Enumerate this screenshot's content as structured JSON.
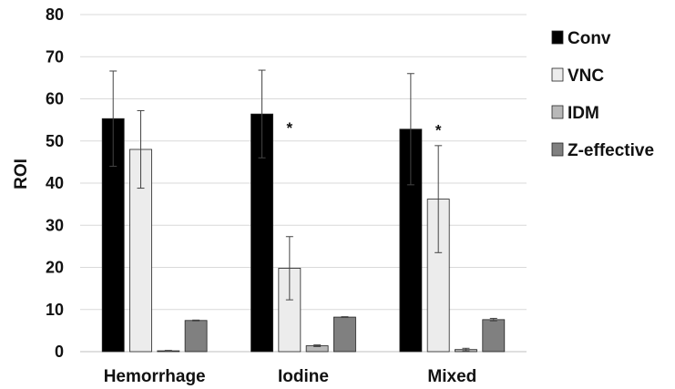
{
  "chart_data": {
    "type": "bar",
    "title": "",
    "xlabel": "",
    "ylabel": "ROI",
    "ylim": [
      0,
      80
    ],
    "yticks": [
      0,
      10,
      20,
      30,
      40,
      50,
      60,
      70,
      80
    ],
    "grid": true,
    "legend_position": "right",
    "categories": [
      "Hemorrhage",
      "Iodine",
      "Mixed"
    ],
    "series": [
      {
        "name": "Conv",
        "color": "#000000",
        "values": [
          55.3,
          56.4,
          52.8
        ],
        "errors": [
          11.3,
          10.4,
          13.2
        ]
      },
      {
        "name": "VNC",
        "color": "#ececec",
        "values": [
          48.0,
          19.8,
          36.2
        ],
        "errors": [
          9.2,
          7.5,
          12.7
        ]
      },
      {
        "name": "IDM",
        "color": "#b8b8b8",
        "values": [
          0.2,
          1.4,
          0.5
        ],
        "errors": [
          0.1,
          0.2,
          0.3
        ]
      },
      {
        "name": "Z-effective",
        "color": "#808080",
        "values": [
          7.4,
          8.2,
          7.6
        ],
        "errors": [
          0.1,
          0.1,
          0.3
        ]
      }
    ],
    "annotations": [
      {
        "text": "*",
        "category": "Iodine",
        "series": "VNC",
        "y": 54.5
      },
      {
        "text": "*",
        "category": "Mixed",
        "series": "VNC",
        "y": 54.0
      }
    ]
  }
}
